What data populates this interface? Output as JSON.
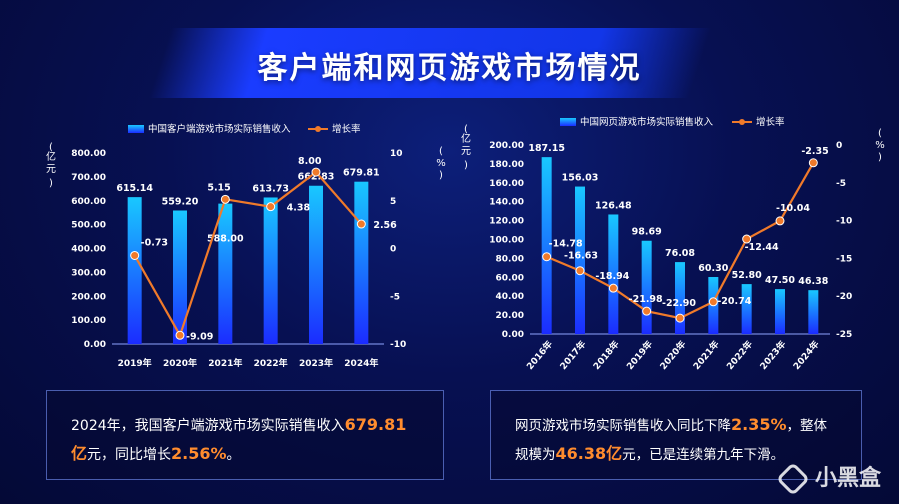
{
  "title": "客户端和网页游戏市场情况",
  "colors": {
    "bar_top": "#19c8ff",
    "bar_bottom": "#1b2cff",
    "line": "#f07a2a"
  },
  "chart_data": [
    {
      "type": "bar",
      "title": "",
      "legend": {
        "bar": "中国客户端游戏市场实际销售收入",
        "line": "增长率"
      },
      "ylabel": "亿元",
      "y2label": "%",
      "categories": [
        "2019年",
        "2020年",
        "2021年",
        "2022年",
        "2023年",
        "2024年"
      ],
      "series": [
        {
          "name": "中国客户端游戏市场实际销售收入",
          "values": [
            615.14,
            559.2,
            588.0,
            613.73,
            662.83,
            679.81
          ],
          "labels": [
            "615.14",
            "559.20",
            "588.00",
            "613.73",
            "662.83",
            "679.81"
          ]
        },
        {
          "name": "增长率",
          "values": [
            -0.73,
            -9.09,
            5.15,
            4.38,
            8.0,
            2.56
          ],
          "labels": [
            "-0.73",
            "-9.09",
            "5.15",
            "4.38",
            "8.00",
            "2.56"
          ]
        }
      ],
      "ylim": [
        0,
        800
      ],
      "y2lim": [
        -10,
        10
      ],
      "yticks": [
        "0.00",
        "100.00",
        "200.00",
        "300.00",
        "400.00",
        "500.00",
        "600.00",
        "700.00",
        "800.00"
      ],
      "y2ticks": [
        "-10",
        "-5",
        "0",
        "5",
        "10"
      ]
    },
    {
      "type": "bar",
      "title": "",
      "legend": {
        "bar": "中国网页游戏市场实际销售收入",
        "line": "增长率"
      },
      "ylabel": "亿元",
      "y2label": "%",
      "categories": [
        "2016年",
        "2017年",
        "2018年",
        "2019年",
        "2020年",
        "2021年",
        "2022年",
        "2023年",
        "2024年"
      ],
      "series": [
        {
          "name": "中国网页游戏市场实际销售收入",
          "values": [
            187.15,
            156.03,
            126.48,
            98.69,
            76.08,
            60.3,
            52.8,
            47.5,
            46.38
          ],
          "labels": [
            "187.15",
            "156.03",
            "126.48",
            "98.69",
            "76.08",
            "60.30",
            "52.80",
            "47.50",
            "46.38"
          ]
        },
        {
          "name": "增长率",
          "values": [
            -14.78,
            -16.63,
            -18.94,
            -21.98,
            -22.9,
            -20.74,
            -12.44,
            -10.04,
            -2.35
          ],
          "labels": [
            "-14.78",
            "-16.63",
            "-18.94",
            "-21.98",
            "-22.90",
            "-20.74",
            "-12.44",
            "-10.04",
            "-2.35"
          ]
        }
      ],
      "ylim": [
        0,
        200
      ],
      "y2lim": [
        -25,
        0
      ],
      "yticks": [
        "0.00",
        "20.00",
        "40.00",
        "60.00",
        "80.00",
        "100.00",
        "120.00",
        "140.00",
        "160.00",
        "180.00",
        "200.00"
      ],
      "y2ticks": [
        "-25",
        "-20",
        "-15",
        "-10",
        "-5",
        "0"
      ]
    }
  ],
  "box_left": {
    "t1": "2024年，我国客户端游戏市场实际销售收入",
    "h1": "679.81亿",
    "t2": "元，同比增长",
    "h2": "2.56%",
    "t3": "。"
  },
  "box_right": {
    "t1": "网页游戏市场实际销售收入同比下降",
    "h1": "2.35%",
    "t2": "，整体规模为",
    "h2": "46.38亿",
    "t3": "元，已是连续第九年下滑。"
  },
  "watermark": "小黑盒"
}
